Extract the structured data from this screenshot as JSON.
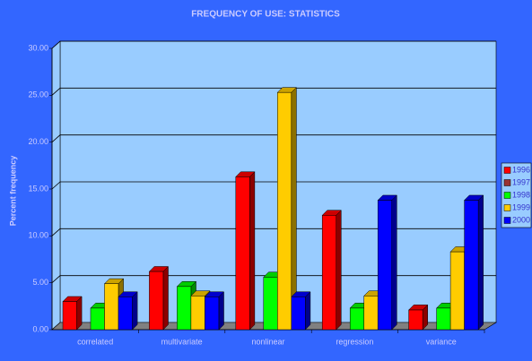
{
  "chart_data": {
    "type": "bar3d",
    "title": "FREQUENCY OF USE: STATISTICS",
    "y_label": "Percent frequency",
    "categories": [
      "correlated",
      "multivariate",
      "nonlinear",
      "regression",
      "variance"
    ],
    "series": [
      {
        "name": "1996",
        "color": "#ff0000",
        "values": [
          3.0,
          6.2,
          16.3,
          12.2,
          2.1
        ]
      },
      {
        "name": "1997",
        "color": "#993333",
        "values": [
          0,
          0,
          0,
          0,
          0
        ]
      },
      {
        "name": "1998",
        "color": "#00ff00",
        "values": [
          2.3,
          4.6,
          5.6,
          2.3,
          2.3
        ]
      },
      {
        "name": "1999",
        "color": "#ffcc00",
        "values": [
          4.9,
          3.6,
          25.3,
          3.6,
          8.3
        ]
      },
      {
        "name": "2000",
        "color": "#0000ff",
        "values": [
          3.5,
          3.5,
          3.5,
          13.8,
          13.8
        ]
      }
    ],
    "ylim": [
      0,
      30
    ],
    "yticks": [
      {
        "value": 0,
        "label": "0.00"
      },
      {
        "value": 5,
        "label": "5.00"
      },
      {
        "value": 10,
        "label": "10.00"
      },
      {
        "value": 15,
        "label": "15.00"
      },
      {
        "value": 20,
        "label": "20.00"
      },
      {
        "value": 25,
        "label": "25.00"
      },
      {
        "value": 30,
        "label": "30.00"
      }
    ],
    "grid": true,
    "legend": "right"
  }
}
